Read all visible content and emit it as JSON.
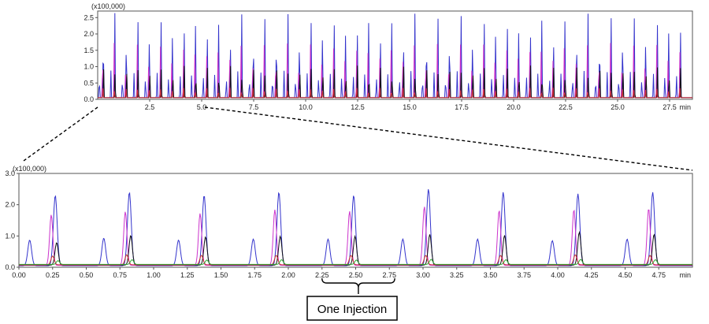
{
  "chart_data": [
    {
      "type": "line",
      "id": "overview",
      "y_multiplier_label": "(x100,000)",
      "x_unit_label": "min",
      "xlim": [
        0,
        28.6
      ],
      "ylim": [
        0,
        2.7
      ],
      "x_ticks": [
        "2.5",
        "5.0",
        "7.5",
        "10.0",
        "12.5",
        "15.0",
        "17.5",
        "20.0",
        "22.5",
        "25.0",
        "27.5"
      ],
      "x_tick_values": [
        2.5,
        5.0,
        7.5,
        10.0,
        12.5,
        15.0,
        17.5,
        20.0,
        22.5,
        25.0,
        27.5
      ],
      "y_ticks": [
        "0.0",
        "0.5",
        "1.0",
        "1.5",
        "2.0",
        "2.5"
      ],
      "y_tick_values": [
        0,
        0.5,
        1.0,
        1.5,
        2.0,
        2.5
      ],
      "injection_period_min": 0.555,
      "first_injection_min": 0.05,
      "injection_count": 51,
      "series": [
        {
          "color": "#3333cc",
          "peak_values": [
            0.8,
            2.5
          ],
          "peak_offsets_min": [
            0.03,
            0.22
          ]
        },
        {
          "color": "#cc33cc",
          "peak_values": [
            1.65
          ],
          "peak_offsets_min": [
            0.19
          ]
        },
        {
          "color": "#111111",
          "peak_values": [
            0.95
          ],
          "peak_offsets_min": [
            0.23
          ]
        },
        {
          "color": "#cc3333",
          "peak_values": [
            0.3
          ],
          "peak_offsets_min": [
            0.2
          ]
        }
      ]
    },
    {
      "type": "line",
      "id": "zoom",
      "y_multiplier_label": "(x100,000)",
      "x_unit_label": "min",
      "xlim": [
        0,
        5.0
      ],
      "ylim": [
        0,
        3.0
      ],
      "x_ticks": [
        "0.00",
        "0.25",
        "0.50",
        "0.75",
        "1.00",
        "1.25",
        "1.50",
        "1.75",
        "2.00",
        "2.25",
        "2.50",
        "2.75",
        "3.00",
        "3.25",
        "3.50",
        "3.75",
        "4.00",
        "4.25",
        "4.50",
        "4.75"
      ],
      "x_tick_values": [
        0,
        0.25,
        0.5,
        0.75,
        1.0,
        1.25,
        1.5,
        1.75,
        2.0,
        2.25,
        2.5,
        2.75,
        3.0,
        3.25,
        3.5,
        3.75,
        4.0,
        4.25,
        4.5,
        4.75
      ],
      "y_ticks": [
        "0.0",
        "1.0",
        "2.0",
        "3.0"
      ],
      "y_tick_values": [
        0,
        1.0,
        2.0,
        3.0
      ],
      "injection_starts_min": [
        0.05,
        0.6,
        1.155,
        1.71,
        2.265,
        2.82,
        3.375,
        3.93,
        4.485
      ],
      "series": [
        {
          "color": "#3333cc",
          "peaks": [
            {
              "offset": 0.03,
              "values": [
                0.82,
                0.88,
                0.82,
                0.85,
                0.85,
                0.85,
                0.85,
                0.8,
                0.85
              ]
            },
            {
              "offset": 0.22,
              "values": [
                2.25,
                2.35,
                2.25,
                2.35,
                2.25,
                2.45,
                2.35,
                2.3,
                2.35
              ]
            }
          ]
        },
        {
          "color": "#cc33cc",
          "peaks": [
            {
              "offset": 0.19,
              "values": [
                1.62,
                1.72,
                1.66,
                1.78,
                1.73,
                1.88,
                1.76,
                1.78,
                1.82
              ]
            }
          ]
        },
        {
          "color": "#111111",
          "peaks": [
            {
              "offset": 0.23,
              "values": [
                0.72,
                0.95,
                0.9,
                0.92,
                0.92,
                0.98,
                0.95,
                1.05,
                0.98
              ]
            }
          ]
        },
        {
          "color": "#cc3333",
          "peaks": [
            {
              "offset": 0.2,
              "values": [
                0.28,
                0.32,
                0.3,
                0.3,
                0.3,
                0.3,
                0.3,
                0.32,
                0.3
              ]
            }
          ]
        },
        {
          "color": "#33aa33",
          "peaks": [
            {
              "offset": 0.24,
              "values": [
                0.12,
                0.15,
                0.14,
                0.15,
                0.14,
                0.16,
                0.15,
                0.16,
                0.15
              ]
            }
          ]
        }
      ]
    }
  ],
  "annotation": {
    "label": "One Injection",
    "bracket_start_min": 2.25,
    "bracket_end_min": 2.79
  }
}
